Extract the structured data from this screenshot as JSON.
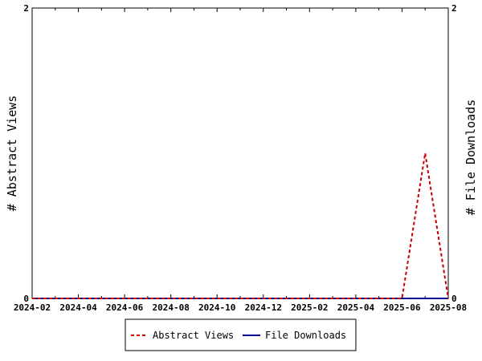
{
  "chart_data": {
    "type": "line",
    "x": [
      "2024-02",
      "2024-03",
      "2024-04",
      "2024-05",
      "2024-06",
      "2024-07",
      "2024-08",
      "2024-09",
      "2024-10",
      "2024-11",
      "2024-12",
      "2025-01",
      "2025-02",
      "2025-03",
      "2025-04",
      "2025-05",
      "2025-06",
      "2025-07",
      "2025-08"
    ],
    "x_tick_labels": [
      "2024-02",
      "2024-04",
      "2024-06",
      "2024-08",
      "2024-10",
      "2024-12",
      "2025-02",
      "2025-04",
      "2025-06",
      "2025-08"
    ],
    "series": [
      {
        "name": "Abstract Views",
        "axis": "left",
        "color": "#cc0000",
        "dash": "dashed",
        "values": [
          0,
          0,
          0,
          0,
          0,
          0,
          0,
          0,
          0,
          0,
          0,
          0,
          0,
          0,
          0,
          0,
          0,
          1,
          0
        ]
      },
      {
        "name": "File Downloads",
        "axis": "right",
        "color": "#000099",
        "dash": "solid",
        "values": [
          0,
          0,
          0,
          0,
          0,
          0,
          0,
          0,
          0,
          0,
          0,
          0,
          0,
          0,
          0,
          0,
          0,
          0,
          0
        ]
      }
    ],
    "ylabel_left": "# Abstract Views",
    "ylabel_right": "# File Downloads",
    "ylim_left": [
      0,
      2
    ],
    "ylim_right": [
      0,
      2
    ],
    "y_ticks_left": [
      "0",
      "2"
    ],
    "y_ticks_right": [
      "0",
      "2"
    ],
    "grid": false,
    "legend_position": "bottom"
  }
}
